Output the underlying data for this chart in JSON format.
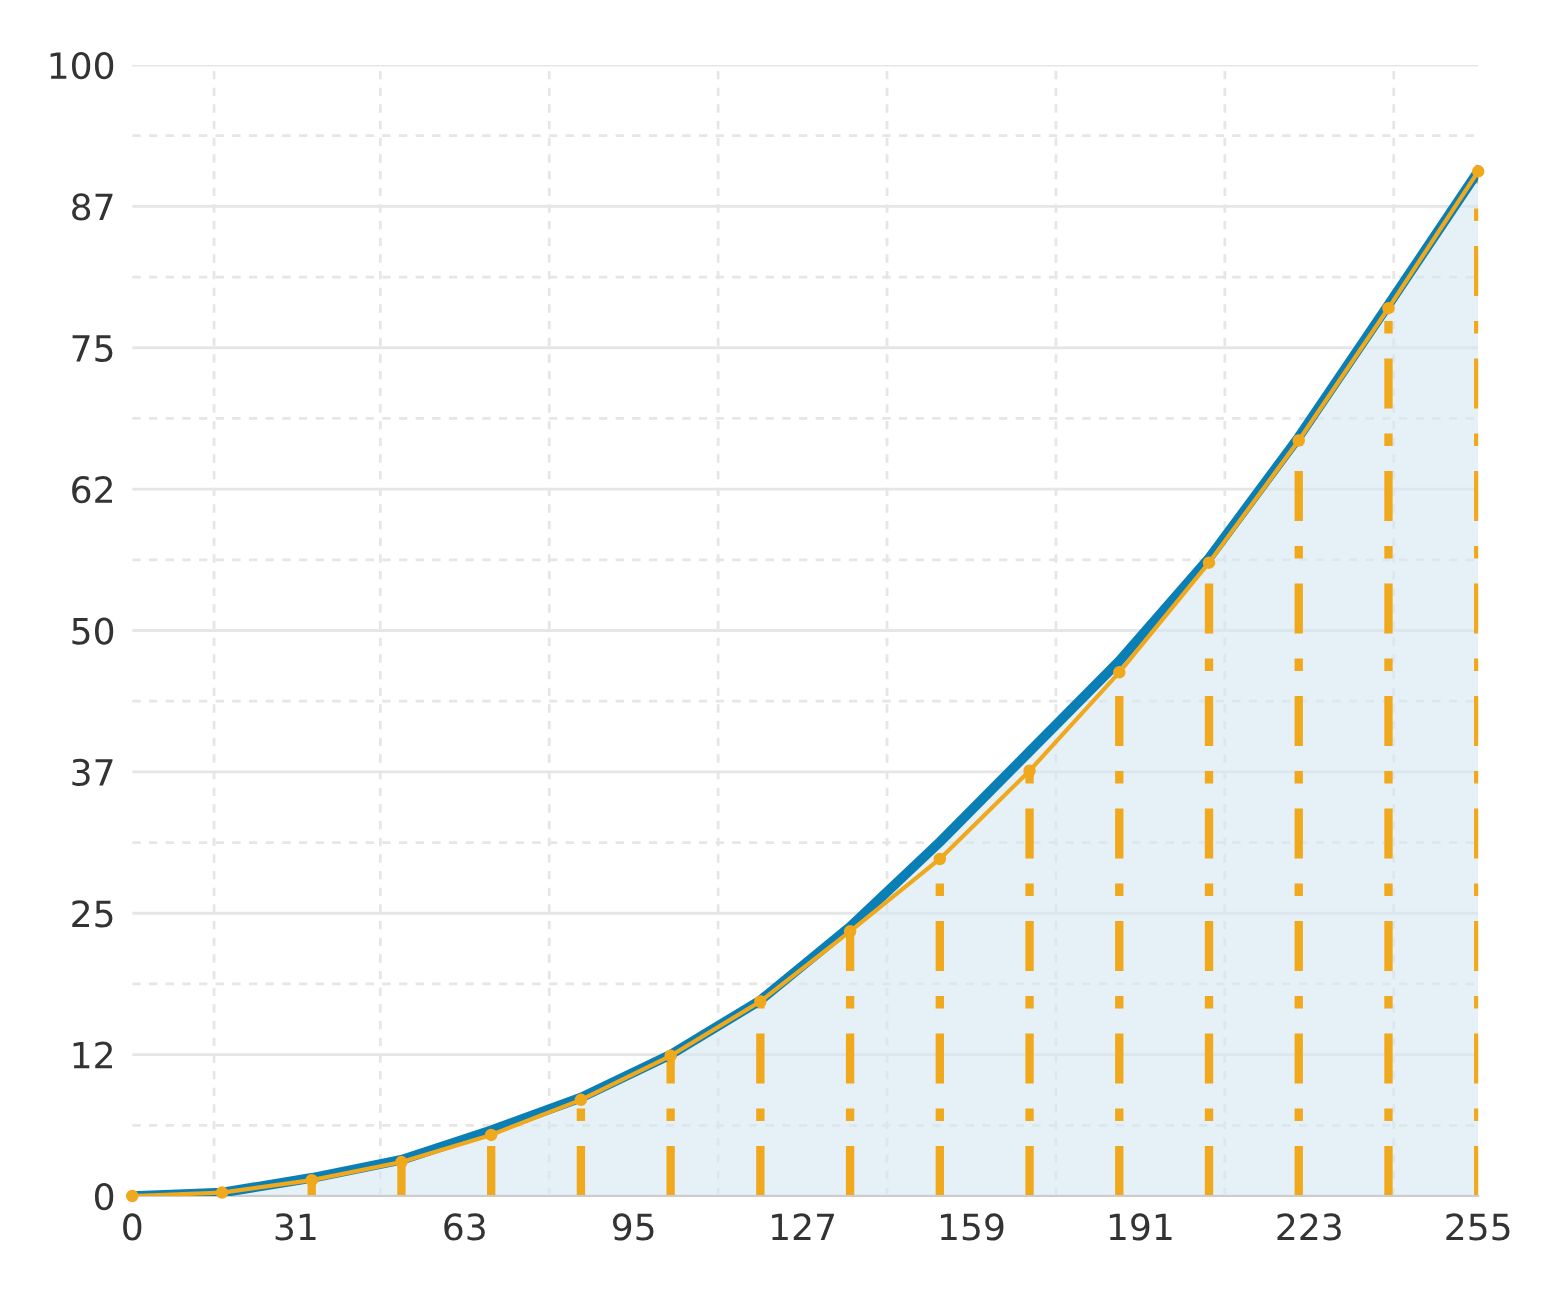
{
  "chart_data": {
    "type": "area",
    "xlim": [
      0,
      255
    ],
    "xticks": [
      0,
      31,
      63,
      95,
      127,
      159,
      191,
      223,
      255
    ],
    "ylim": [
      0,
      100
    ],
    "yticks": [
      0,
      {
        "value": 12.5,
        "label": "12"
      },
      25,
      {
        "value": 37.5,
        "label": "37"
      },
      50,
      {
        "value": 62.5,
        "label": "62"
      },
      75,
      {
        "value": 87.5,
        "label": "87"
      },
      100
    ],
    "grid": true,
    "x": [
      0,
      17,
      34,
      51,
      68,
      85,
      102,
      119,
      136,
      153,
      170,
      187,
      204,
      221,
      238,
      255
    ],
    "series": [
      {
        "color": "#0a7fb5",
        "values": [
          0,
          0.3,
          1.6,
          3.2,
          5.8,
          8.7,
          12.5,
          17.3,
          23.8,
          31.3,
          39.3,
          47.3,
          56.4,
          67.1,
          78.8,
          90.6
        ]
      },
      {
        "type": "lollipop",
        "color": "#f0a81c",
        "line_style": "dashed",
        "marker": "circle",
        "values": [
          0,
          0.3,
          1.4,
          3.0,
          5.4,
          8.5,
          12.4,
          17.2,
          23.4,
          29.8,
          37.6,
          46.3,
          56.0,
          66.8,
          78.5,
          90.6
        ]
      }
    ]
  }
}
